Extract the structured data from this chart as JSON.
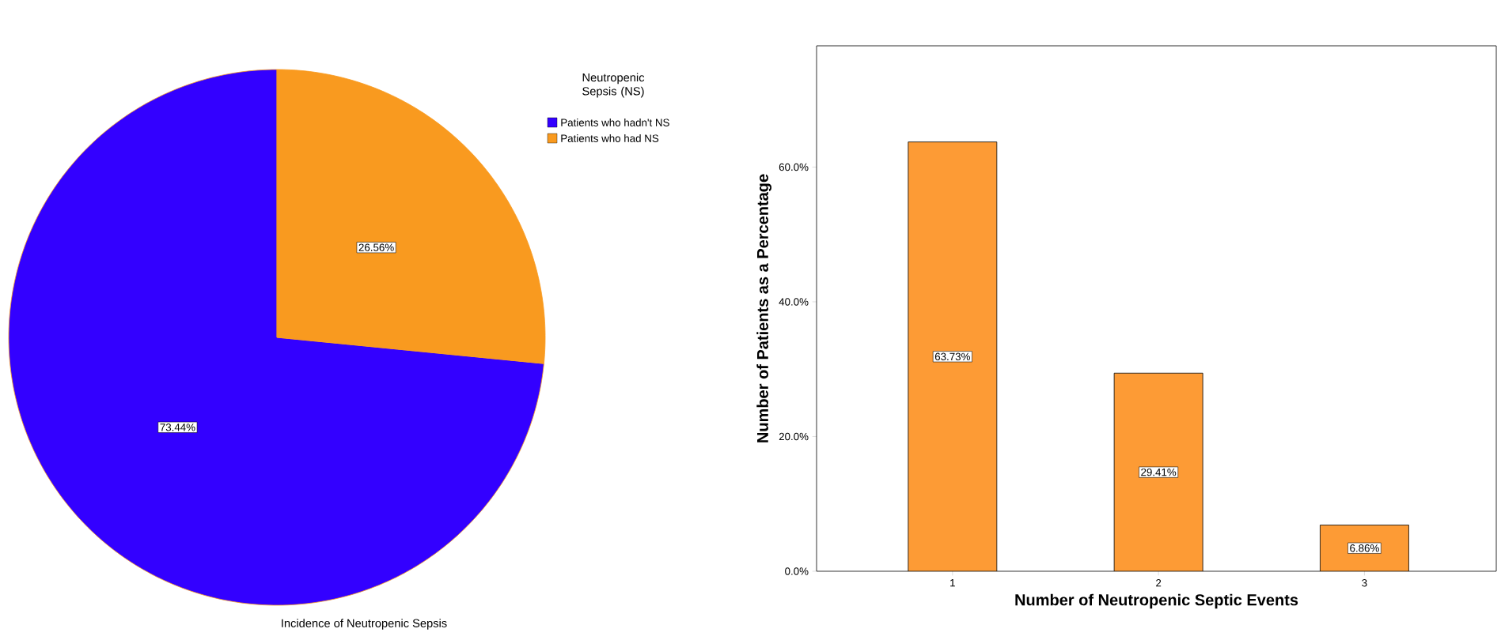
{
  "chart_data": [
    {
      "type": "pie",
      "title": "Incidence of Neutropenic Sepsis",
      "legend_title": "Neutropenic Sepsis (NS)",
      "legend": "top right",
      "categories": [
        "Patients who hadn't NS",
        "Patients who had NS"
      ],
      "values": [
        73.44,
        26.56
      ],
      "colors": [
        "#3300ff",
        "#f99a1f"
      ],
      "value_labels": [
        "73.44%",
        "26.56%"
      ]
    },
    {
      "type": "bar",
      "xlabel": "Number of Neutropenic Septic Events",
      "ylabel": "Number of Patients as a Percentage",
      "categories": [
        "1",
        "2",
        "3"
      ],
      "values": [
        63.73,
        29.41,
        6.86
      ],
      "color": "#fd9b35",
      "value_labels": [
        "63.73%",
        "29.41%",
        "6.86%"
      ],
      "ylim": [
        0,
        78
      ],
      "yticks": [
        {
          "value": 0,
          "label": "0.0%"
        },
        {
          "value": 20,
          "label": "20.0%"
        },
        {
          "value": 40,
          "label": "40.0%"
        },
        {
          "value": 60,
          "label": "60.0%"
        }
      ],
      "grid": false
    }
  ]
}
